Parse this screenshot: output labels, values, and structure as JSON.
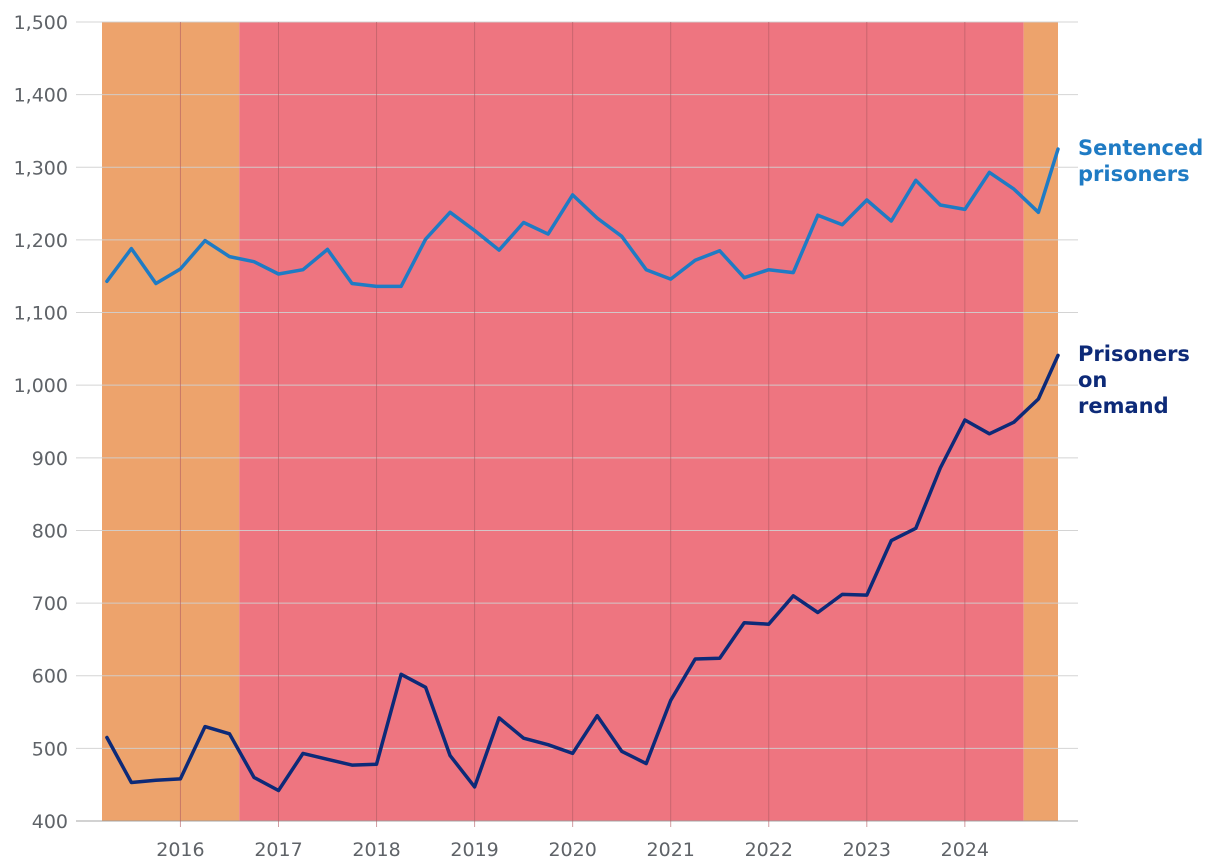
{
  "colors": {
    "sentenced": "#1f7bc4",
    "remand": "#0d2a78",
    "band_orange": "#eda36c",
    "band_red": "#ee7580",
    "grid": "#cfcfcf",
    "year_line": "#b05a62"
  },
  "labels": {
    "sentenced": [
      "Sentenced",
      "prisoners"
    ],
    "remand": [
      "Prisoners",
      "on",
      "remand"
    ]
  },
  "chart_data": {
    "type": "line",
    "title": "",
    "xlabel": "",
    "ylabel": "",
    "ylim": [
      400,
      1500
    ],
    "yticks": [
      400,
      500,
      600,
      700,
      800,
      900,
      1000,
      1100,
      1200,
      1300,
      1400,
      1500
    ],
    "ytick_labels": [
      "400",
      "500",
      "600",
      "700",
      "800",
      "900",
      "1,000",
      "1,100",
      "1,200",
      "1,300",
      "1,400",
      "1,500"
    ],
    "xlim": [
      2015.2,
      2024.95
    ],
    "xticks": [
      2016,
      2017,
      2018,
      2019,
      2020,
      2021,
      2022,
      2023,
      2024
    ],
    "xtick_labels": [
      "2016",
      "2017",
      "2018",
      "2019",
      "2020",
      "2021",
      "2022",
      "2023",
      "2024"
    ],
    "background_bands": [
      {
        "start": 2015.2,
        "end": 2016.6,
        "color": "orange"
      },
      {
        "start": 2016.6,
        "end": 2024.6,
        "color": "red"
      },
      {
        "start": 2024.6,
        "end": 2024.95,
        "color": "orange"
      }
    ],
    "x": [
      2015.25,
      2015.5,
      2015.75,
      2016.0,
      2016.25,
      2016.5,
      2016.75,
      2017.0,
      2017.25,
      2017.5,
      2017.75,
      2018.0,
      2018.25,
      2018.5,
      2018.75,
      2019.0,
      2019.25,
      2019.5,
      2019.75,
      2020.0,
      2020.25,
      2020.5,
      2020.75,
      2021.0,
      2021.25,
      2021.5,
      2021.75,
      2022.0,
      2022.25,
      2022.5,
      2022.75,
      2023.0,
      2023.25,
      2023.5,
      2023.75,
      2024.0,
      2024.25,
      2024.5,
      2024.75,
      2025.0
    ],
    "series": [
      {
        "name": "Sentenced prisoners",
        "color": "sentenced",
        "values": [
          1143,
          1188,
          1140,
          1160,
          1199,
          1177,
          1170,
          1153,
          1159,
          1187,
          1140,
          1136,
          1136,
          1201,
          1238,
          1213,
          1186,
          1224,
          1208,
          1262,
          1230,
          1205,
          1159,
          1146,
          1172,
          1185,
          1148,
          1159,
          1155,
          1234,
          1221,
          1255,
          1226,
          1282,
          1248,
          1242,
          1293,
          1270,
          1238,
          1325
        ]
      },
      {
        "name": "Prisoners on remand",
        "color": "remand",
        "values": [
          515,
          453,
          456,
          458,
          530,
          520,
          460,
          442,
          493,
          485,
          477,
          478,
          602,
          584,
          490,
          447,
          542,
          514,
          505,
          493,
          545,
          496,
          479,
          566,
          623,
          624,
          673,
          671,
          710,
          687,
          712,
          711,
          786,
          803,
          886,
          952,
          933,
          949,
          981,
          1041
        ]
      }
    ]
  }
}
